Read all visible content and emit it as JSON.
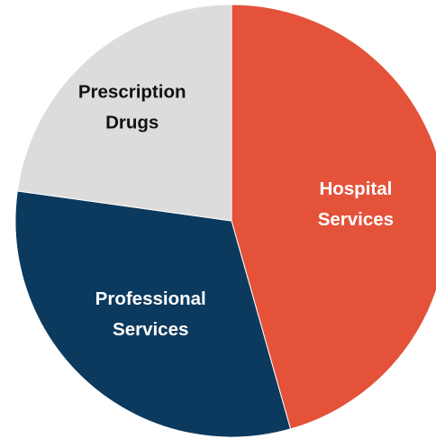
{
  "chart_data": {
    "type": "pie",
    "title": "",
    "slices": [
      {
        "label_lines": [
          "Hospital",
          "Services"
        ],
        "value": 45.6,
        "color": "#e4523a",
        "text_color": "#ffffff"
      },
      {
        "label_lines": [
          "Professional",
          "Services"
        ],
        "value": 31.6,
        "color": "#0c3a5e",
        "text_color": "#ffffff"
      },
      {
        "label_lines": [
          "Prescription",
          "Drugs"
        ],
        "value": 22.8,
        "color": "#dcdcdc",
        "text_color": "#111111"
      }
    ],
    "start_angle_deg": 0,
    "direction": "clockwise",
    "legend": "none"
  }
}
